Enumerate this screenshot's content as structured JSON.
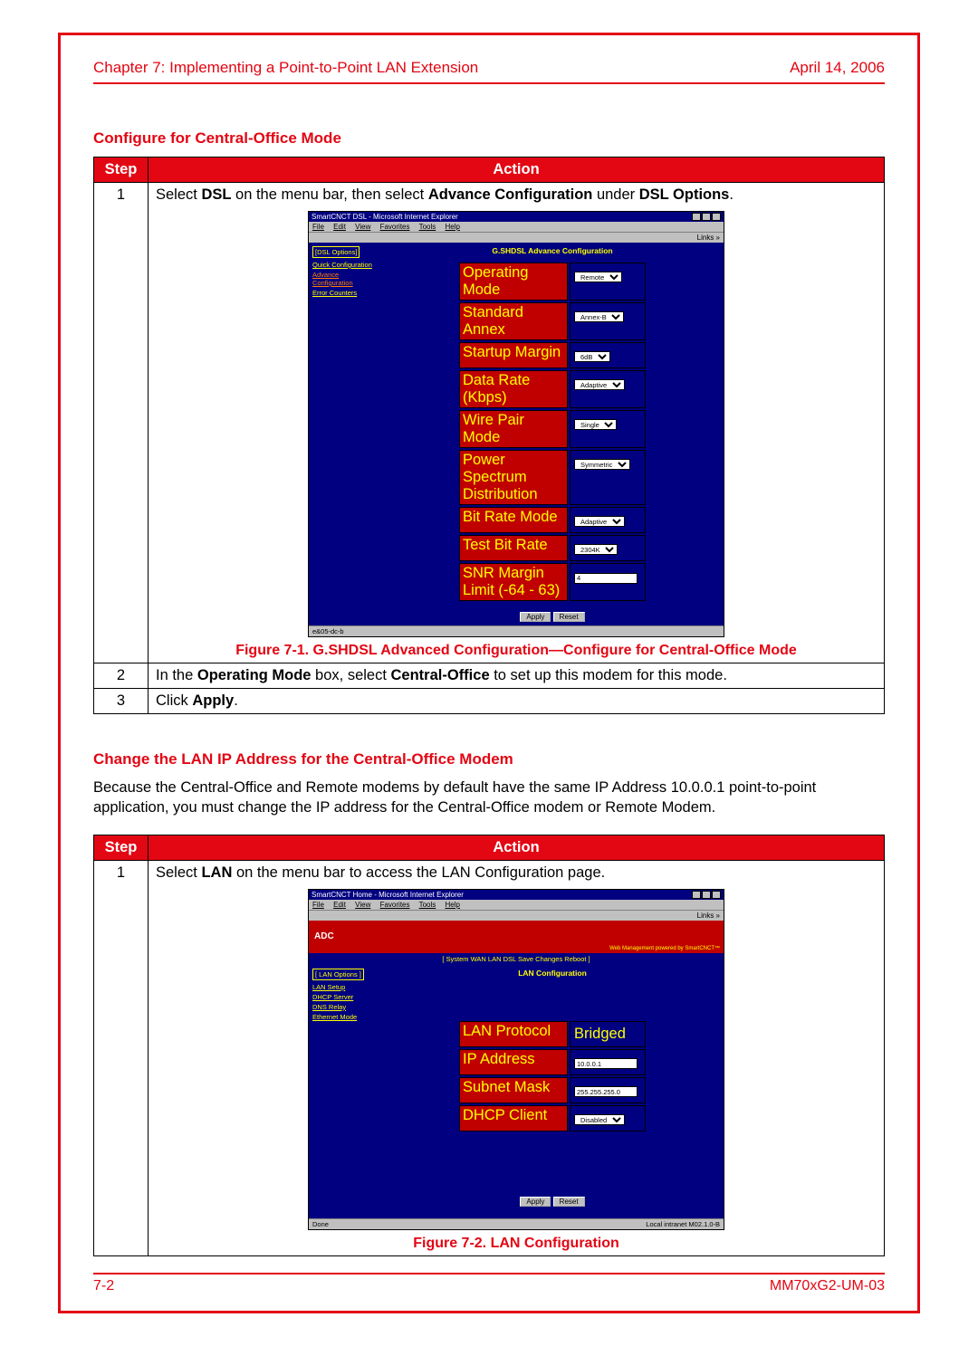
{
  "colors": {
    "brand_red": "#e30613",
    "ie_titlebar": "#000080",
    "app_bg": "#000080",
    "app_label_bg": "#c00000",
    "app_yellow": "#ffff00",
    "gray": "#c0c0c0"
  },
  "header": {
    "chapter": "Chapter 7: Implementing a Point-to-Point LAN Extension",
    "date": "April 14, 2006"
  },
  "footer": {
    "page": "7-2",
    "docid": "MM70xG2-UM-03"
  },
  "section1": {
    "title": "Configure for Central-Office Mode",
    "table_headers": {
      "step": "Step",
      "action": "Action"
    },
    "rows": {
      "r1_num": "1",
      "r1_pre": "Select ",
      "r1_b1": "DSL",
      "r1_mid": " on the menu bar, then select ",
      "r1_b2": "Advance Configuration",
      "r1_mid2": " under ",
      "r1_b3": "DSL Options",
      "r1_end": ".",
      "r2_num": "2",
      "r2_pre": "In the ",
      "r2_b1": "Operating Mode",
      "r2_mid": " box, select ",
      "r2_b2": "Central-Office",
      "r2_end": " to set up this modem for this mode.",
      "r3_num": "3",
      "r3_pre": "Click ",
      "r3_b1": "Apply",
      "r3_end": "."
    },
    "figure_caption": "Figure 7-1. G.SHDSL Advanced Configuration—Configure for Central-Office Mode"
  },
  "section2": {
    "title": "Change the LAN IP Address for the Central-Office Modem",
    "body": "Because the Central-Office and Remote modems by default have the same IP Address 10.0.0.1 point-to-point application, you must change the IP address for the Central-Office modem or Remote Modem.",
    "table_headers": {
      "step": "Step",
      "action": "Action"
    },
    "rows": {
      "r1_num": "1",
      "r1_pre": "Select ",
      "r1_b1": "LAN",
      "r1_end": " on the menu bar to access the LAN Configuration page."
    },
    "figure_caption": "Figure 7-2. LAN Configuration"
  },
  "screenshot1": {
    "window_title": "SmartCNCT DSL - Microsoft Internet Explorer",
    "menu": [
      "File",
      "Edit",
      "View",
      "Favorites",
      "Tools",
      "Help"
    ],
    "links_label": "Links »",
    "sidebar_header": "[DSL Options]",
    "sidebar_items": [
      {
        "label": "Quick Configuration",
        "active": false
      },
      {
        "label": "Advance Configuration",
        "active": true
      },
      {
        "label": "Error Counters",
        "active": false
      }
    ],
    "panel_title": "G.SHDSL Advance Configuration",
    "config_rows": [
      {
        "label": "Operating Mode",
        "value": "Remote",
        "type": "select"
      },
      {
        "label": "Standard Annex",
        "value": "Annex-B",
        "type": "select"
      },
      {
        "label": "Startup Margin",
        "value": "6dB",
        "type": "select"
      },
      {
        "label": "Data Rate (Kbps)",
        "value": "Adaptive",
        "type": "select"
      },
      {
        "label": "Wire Pair Mode",
        "value": "Single",
        "type": "select"
      },
      {
        "label": "Power Spectrum Distribution",
        "value": "Symmetric",
        "type": "select"
      },
      {
        "label": "Bit Rate Mode",
        "value": "Adaptive",
        "type": "select"
      },
      {
        "label": "Test Bit Rate",
        "value": "2304K",
        "type": "select"
      },
      {
        "label": "SNR Margin Limit (-64 - 63)",
        "value": "4",
        "type": "input"
      }
    ],
    "buttons": {
      "apply": "Apply",
      "reset": "Reset"
    },
    "status_left": "e&05-dc-b"
  },
  "screenshot2": {
    "window_title": "SmartCNCT Home - Microsoft Internet Explorer",
    "menu": [
      "File",
      "Edit",
      "View",
      "Favorites",
      "Tools",
      "Help"
    ],
    "links_label": "Links »",
    "logo_text": "ADC",
    "logo_tagline": "Web Management powered by SmartCNCT™",
    "nav_tabs": "[ System  WAN  LAN  DSL  Save Changes  Reboot ]",
    "sidebar_header": "[ LAN Options ]",
    "sidebar_items": [
      {
        "label": "LAN Setup"
      },
      {
        "label": "DHCP Server"
      },
      {
        "label": "DNS Relay"
      },
      {
        "label": "Ethernet Mode"
      }
    ],
    "panel_title": "LAN Configuration",
    "config_rows": [
      {
        "label": "LAN Protocol",
        "value": "Bridged",
        "type": "text"
      },
      {
        "label": "IP Address",
        "value": "10.0.0.1",
        "type": "input"
      },
      {
        "label": "Subnet Mask",
        "value": "255.255.255.0",
        "type": "input"
      },
      {
        "label": "DHCP Client",
        "value": "Disabled",
        "type": "select"
      }
    ],
    "buttons": {
      "apply": "Apply",
      "reset": "Reset"
    },
    "status_left": "Done",
    "status_right": "Local intranet M02.1.0-B"
  }
}
